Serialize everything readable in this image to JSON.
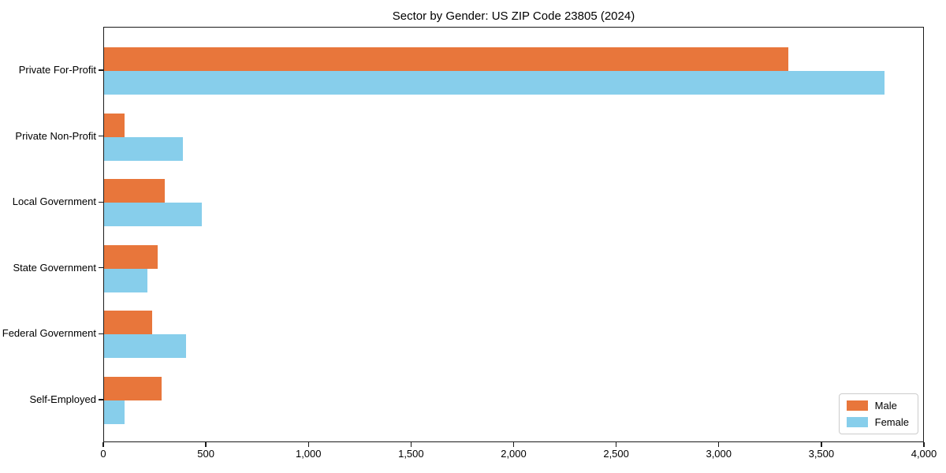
{
  "title": "Sector by Gender: US ZIP Code 23805 (2024)",
  "chart_data": {
    "type": "bar",
    "orientation": "horizontal",
    "title": "Sector by Gender: US ZIP Code 23805 (2024)",
    "categories": [
      "Private For-Profit",
      "Private Non-Profit",
      "Local Government",
      "State Government",
      "Federal Government",
      "Self-Employed"
    ],
    "series": [
      {
        "name": "Male",
        "color": "#E8763B",
        "values": [
          3335,
          100,
          295,
          260,
          235,
          280
        ]
      },
      {
        "name": "Female",
        "color": "#87CEEB",
        "values": [
          3805,
          385,
          475,
          210,
          400,
          100
        ]
      }
    ],
    "xlabel": "",
    "ylabel": "",
    "xlim": [
      0,
      4000
    ],
    "x_ticks": [
      0,
      500,
      1000,
      1500,
      2000,
      2500,
      3000,
      3500,
      4000
    ],
    "x_tick_labels": [
      "0",
      "500",
      "1,000",
      "1,500",
      "2,000",
      "2,500",
      "3,000",
      "3,500",
      "4,000"
    ],
    "grid": false,
    "legend_position": "lower right",
    "axis_color": "#1a1a1a",
    "background_color": "#ffffff"
  }
}
